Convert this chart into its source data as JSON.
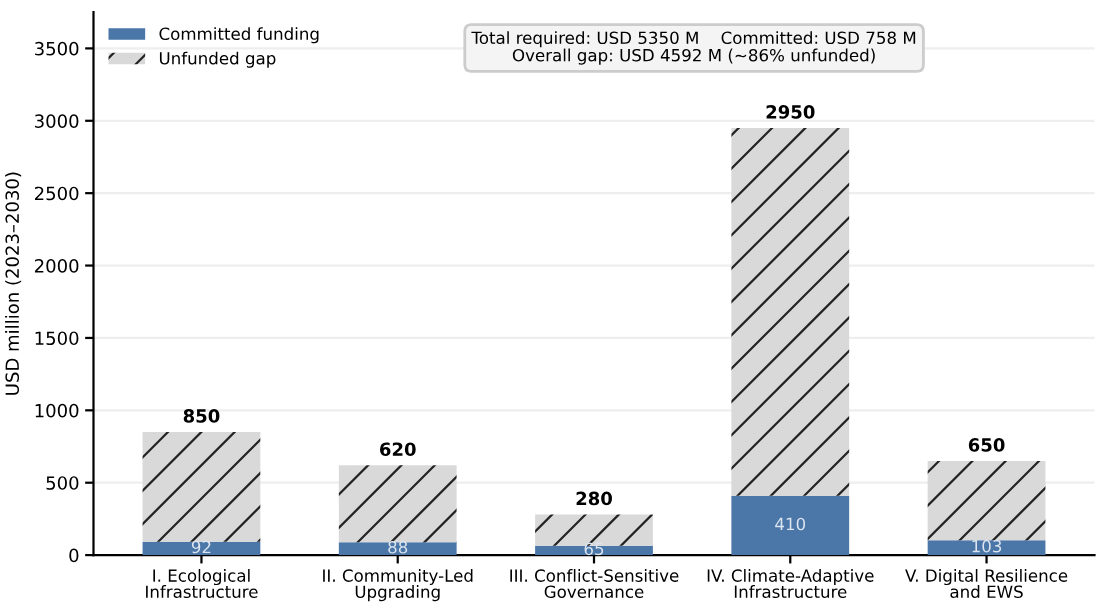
{
  "chart_data": {
    "type": "bar",
    "stacked": true,
    "ylabel": "USD million (2023–2030)",
    "categories": [
      "I. Ecological\nInfrastructure",
      "II. Community-Led\nUpgrading",
      "III. Conflict-Sensitive\nGovernance",
      "IV. Climate-Adaptive\nInfrastructure",
      "V. Digital Resilience\nand EWS"
    ],
    "series": [
      {
        "name": "Committed funding",
        "color": "#4a76a8",
        "values": [
          92,
          88,
          65,
          410,
          103
        ],
        "value_labels": [
          "92",
          "88",
          "65",
          "410",
          "103"
        ]
      },
      {
        "name": "Unfunded gap",
        "color": "#d9d9d9",
        "values": [
          758,
          532,
          215,
          2540,
          547
        ]
      }
    ],
    "totals": [
      "850",
      "620",
      "280",
      "2950",
      "650"
    ],
    "annotations": [
      "Total required: USD 5350 M    Committed: USD 758 M\nOverall gap: USD 4592 M (~86% unfunded)"
    ],
    "ylim": [
      0,
      3750
    ],
    "yticks": [
      0,
      500,
      1000,
      1500,
      2000,
      2500,
      3000,
      3500
    ],
    "grid": "y",
    "legend": "top left"
  }
}
